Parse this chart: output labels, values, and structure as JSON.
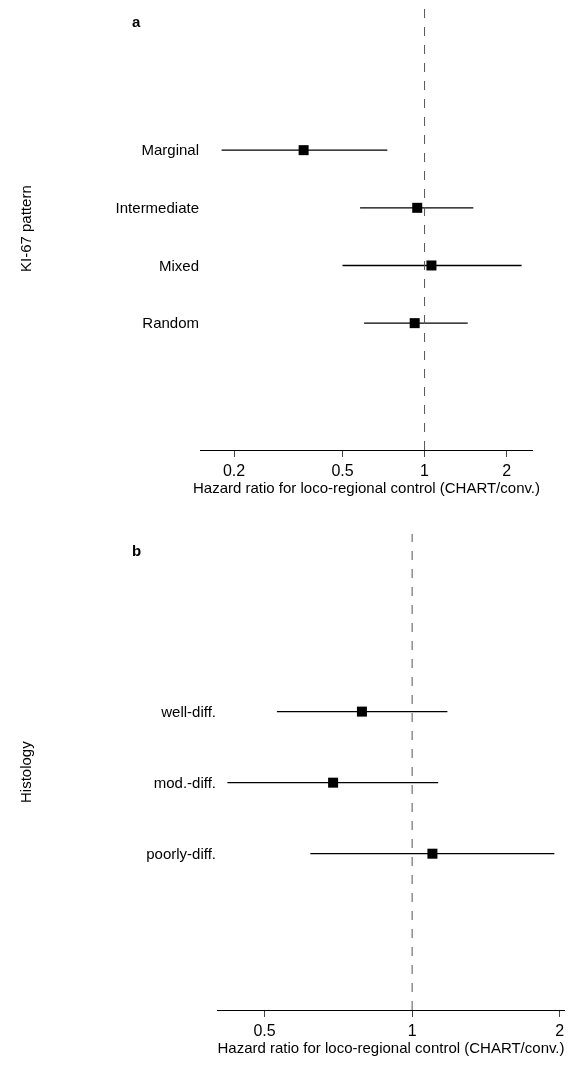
{
  "chart_data": [
    {
      "type": "scatter",
      "title": "a",
      "orientation": "horizontal",
      "categories": [
        "Marginal",
        "Intermediate",
        "Mixed",
        "Random"
      ],
      "values": [
        0.36,
        0.94,
        1.06,
        0.92
      ],
      "errors": [
        [
          0.18,
          0.73
        ],
        [
          0.58,
          1.51
        ],
        [
          0.5,
          2.27
        ],
        [
          0.6,
          1.44
        ]
      ],
      "color": "#000000",
      "marker": "square",
      "xlabel": "Hazard ratio for loco-regional control (CHART/conv.)",
      "ylabel": "KI-67 pattern",
      "log": "x",
      "xlim": [
        0.15,
        2.5
      ],
      "xticks": [
        0.2,
        0.5,
        1,
        2
      ],
      "ref_lines": [
        {
          "axis": "x",
          "value": 1,
          "line_style": "dashed",
          "color": "#555555"
        }
      ]
    },
    {
      "type": "scatter",
      "title": "b",
      "orientation": "horizontal",
      "categories": [
        "well-diff.",
        "mod.-diff.",
        "poorly-diff."
      ],
      "values": [
        0.79,
        0.69,
        1.1
      ],
      "errors": [
        [
          0.53,
          1.18
        ],
        [
          0.42,
          1.13
        ],
        [
          0.62,
          1.95
        ]
      ],
      "color": "#000000",
      "marker": "square",
      "xlabel": "Hazard ratio for loco-regional control (CHART/conv.)",
      "ylabel": "Histology",
      "log": "x",
      "xlim": [
        0.4,
        2.05
      ],
      "xticks": [
        0.5,
        1,
        2
      ],
      "ref_lines": [
        {
          "axis": "x",
          "value": 1,
          "line_style": "dashed",
          "color": "#555555"
        }
      ]
    }
  ]
}
